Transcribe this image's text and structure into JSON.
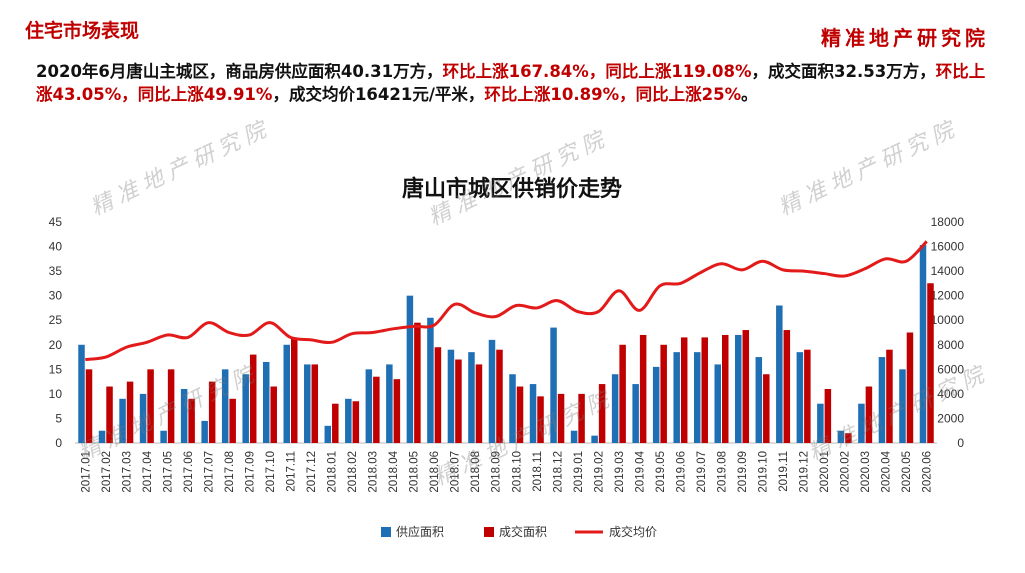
{
  "header": {
    "section_title": "住宅市场表现",
    "brand": "精准地产研究院"
  },
  "summary": {
    "p1": "2020年6月唐山主城区，商品房供应面积40.31万方，",
    "p2": "环比上涨167.84%，同比上涨119.08%",
    "p3": "，成交面积32.53万方，",
    "p4": "环比上涨43.05%，同比上涨49.91%",
    "p5": "，成交均价16421元/平米，",
    "p6": "环比上涨10.89%，同比上涨25%",
    "p7": "。"
  },
  "watermark": "精准地产研究院",
  "colors": {
    "supply": "#1f6fb5",
    "deal_area": "#c00000",
    "avg_price": "#e31a1a",
    "title_red": "#c00000"
  },
  "chart_data": {
    "type": "bar",
    "title": "唐山市城区供销价走势",
    "categories": [
      "2017.01",
      "2017.02",
      "2017.03",
      "2017.04",
      "2017.05",
      "2017.06",
      "2017.07",
      "2017.08",
      "2017.09",
      "2017.10",
      "2017.11",
      "2017.12",
      "2018.01",
      "2018.02",
      "2018.03",
      "2018.04",
      "2018.05",
      "2018.06",
      "2018.07",
      "2018.08",
      "2018.09",
      "2018.10",
      "2018.11",
      "2018.12",
      "2019.01",
      "2019.02",
      "2019.03",
      "2019.04",
      "2019.05",
      "2019.06",
      "2019.07",
      "2019.08",
      "2019.09",
      "2019.10",
      "2019.11",
      "2019.12",
      "2020.01",
      "2020.02",
      "2020.03",
      "2020.04",
      "2020.05",
      "2020.06"
    ],
    "series": [
      {
        "name": "供应面积",
        "axis": "left",
        "type": "bar",
        "values": [
          20,
          2.5,
          9,
          10,
          2.5,
          11,
          4.5,
          15,
          14,
          16.5,
          20,
          16,
          3.5,
          9,
          15,
          16,
          30,
          25.5,
          19,
          18.5,
          21,
          14,
          12,
          23.5,
          2.5,
          1.5,
          14,
          12,
          15.5,
          18.5,
          18.5,
          16,
          22,
          17.5,
          28,
          18.5,
          8,
          2.5,
          8,
          17.5,
          15,
          40.31
        ]
      },
      {
        "name": "成交面积",
        "axis": "left",
        "type": "bar",
        "values": [
          15,
          11.5,
          12.5,
          15,
          15,
          9,
          12.5,
          9,
          18,
          11.5,
          21.5,
          16,
          8,
          8.5,
          13.5,
          13,
          24.5,
          19.5,
          17,
          16,
          19,
          11.5,
          9.5,
          10,
          10,
          12,
          20,
          22,
          20,
          21.5,
          21.5,
          22,
          23,
          14,
          23,
          19,
          11,
          2,
          11.5,
          19,
          22.5,
          32.53
        ]
      },
      {
        "name": "成交均价",
        "axis": "right",
        "type": "line",
        "values": [
          6800,
          7000,
          7800,
          8200,
          8800,
          8600,
          9800,
          9000,
          8800,
          9800,
          8600,
          8400,
          8200,
          8900,
          9000,
          9300,
          9500,
          9600,
          11300,
          10600,
          10300,
          11200,
          11000,
          11600,
          10700,
          10700,
          12400,
          10800,
          12800,
          13000,
          13900,
          14600,
          14100,
          14800,
          14100,
          14000,
          13800,
          13600,
          14200,
          15000,
          14800,
          16421
        ]
      }
    ],
    "legend": [
      "供应面积",
      "成交面积",
      "成交均价"
    ],
    "legend_position": "bottom",
    "ylim_left": [
      0,
      45
    ],
    "yticks_left": [
      "0",
      "5",
      "10",
      "15",
      "20",
      "25",
      "30",
      "35",
      "40",
      "45"
    ],
    "ylim_right": [
      0,
      18000
    ],
    "yticks_right": [
      "0",
      "2000",
      "4000",
      "6000",
      "8000",
      "10000",
      "12000",
      "14000",
      "16000",
      "18000"
    ],
    "grid": false
  }
}
